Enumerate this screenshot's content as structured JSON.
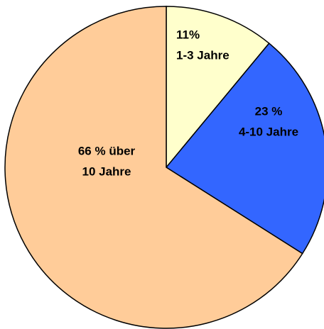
{
  "chart_data": {
    "type": "pie",
    "categories": [
      "1-3 Jahre",
      "4-10 Jahre",
      "über 10 Jahre"
    ],
    "values": [
      11,
      23,
      66
    ],
    "colors": [
      "#ffffcc",
      "#3366ff",
      "#ffcc99"
    ],
    "labels": [
      [
        "11%",
        "1-3 Jahre"
      ],
      [
        "23 %",
        "4-10 Jahre"
      ],
      [
        "66 % über",
        "10 Jahre"
      ]
    ]
  }
}
